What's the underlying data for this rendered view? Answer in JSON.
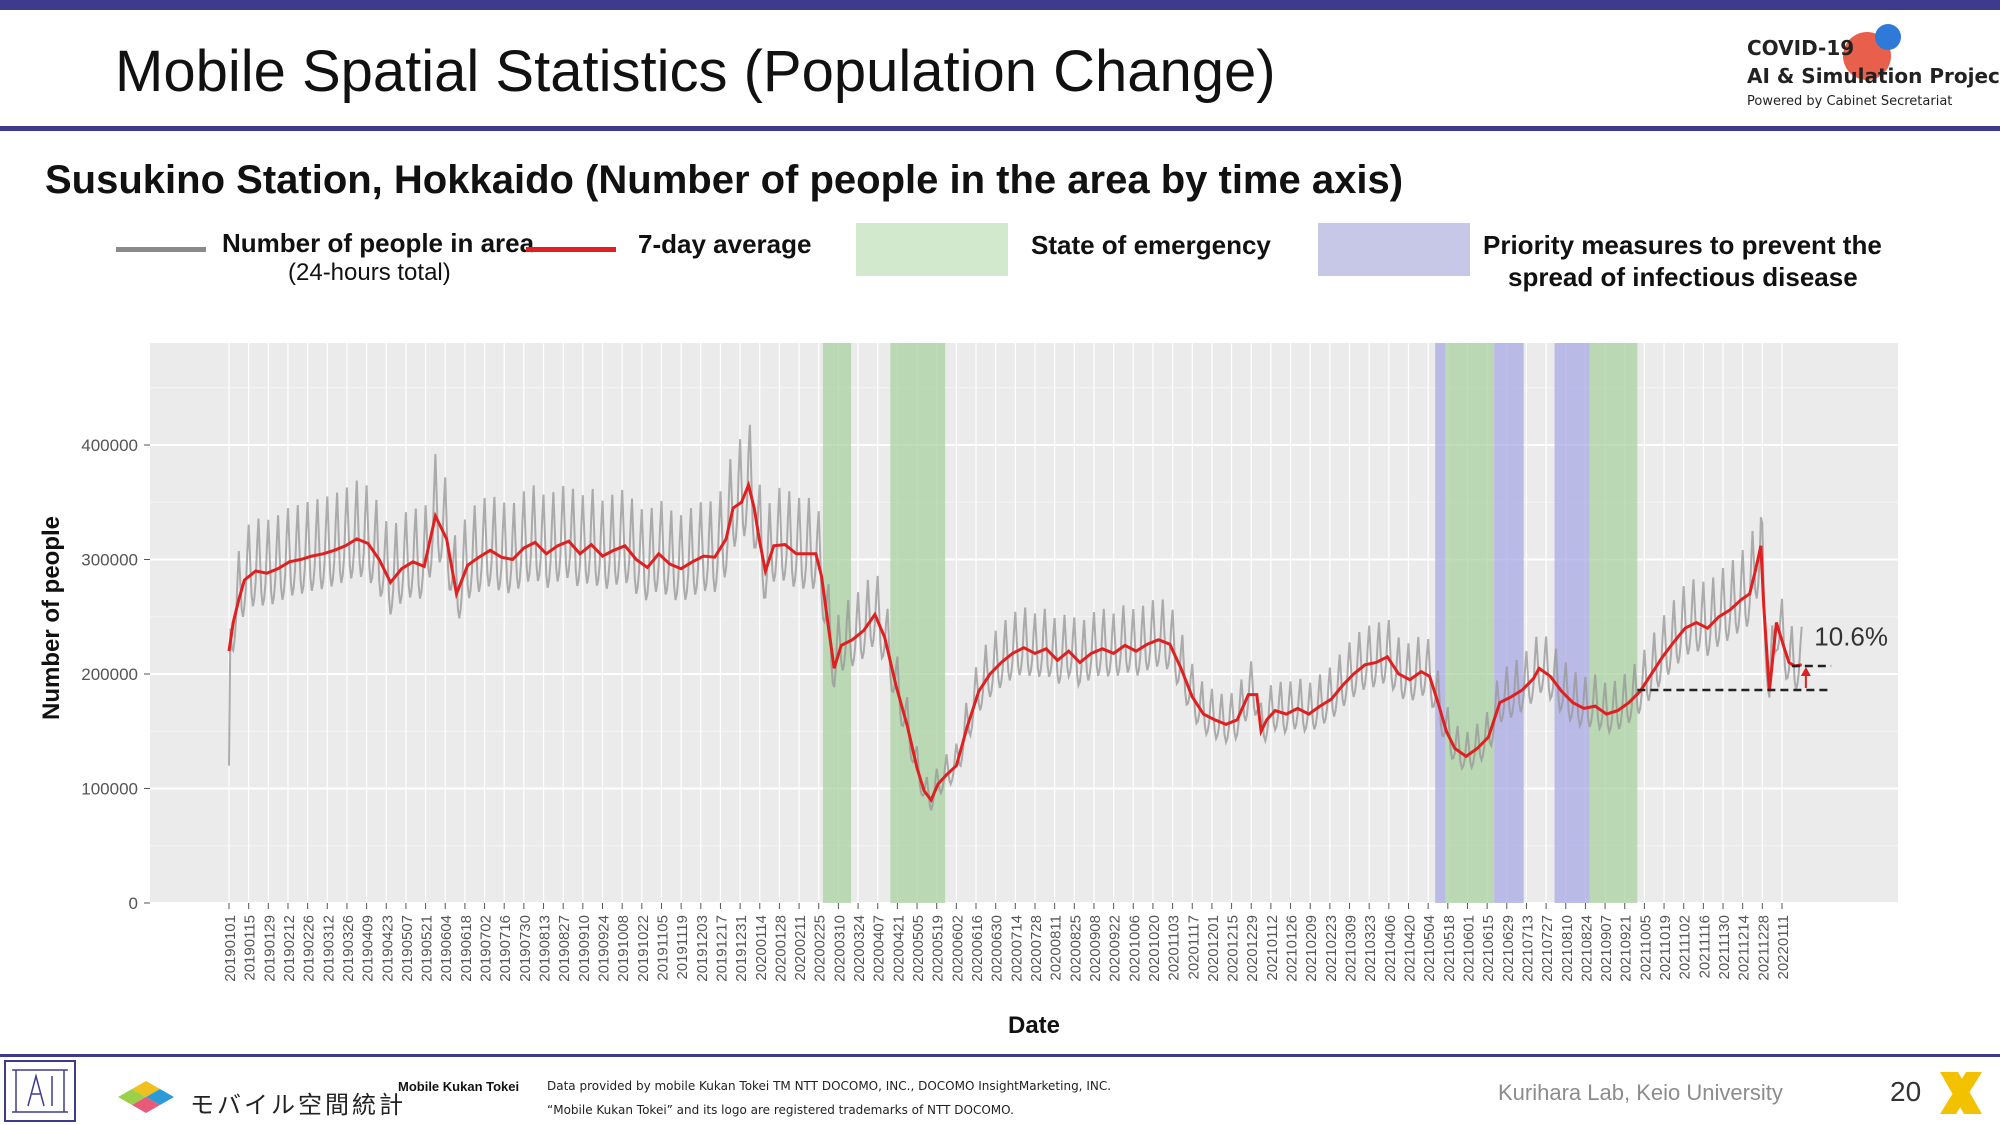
{
  "slide": {
    "title": "Mobile Spatial Statistics (Population Change)",
    "subtitle": "Susukino Station, Hokkaido (Number of people in the area by time axis)",
    "logo": {
      "line1": "COVID-19",
      "line2": "AI & Simulation Project",
      "line3": "Powered by Cabinet Secretariat"
    },
    "page_number": "20",
    "footer": {
      "mk_logo_text": "モバイル空間統計",
      "name": "Mobile Kukan Tokei",
      "credit_line1": "Data provided by mobile Kukan Tokei TM NTT DOCOMO, INC., DOCOMO InsightMarketing, INC.",
      "credit_line2": "“Mobile Kukan Tokei” and its logo are registered trademarks of NTT DOCOMO.",
      "lab": "Kurihara Lab, Keio University"
    }
  },
  "legend": {
    "daily_label": "Number of people in area",
    "daily_sublabel": "(24-hours total)",
    "avg_label": "7-day average",
    "emergency_label": "State of emergency",
    "priority_label_1": "Priority measures to prevent the",
    "priority_label_2": "spread of infectious disease"
  },
  "colors": {
    "accent_bar": "#3e3b8f",
    "daily_line": "#9a9a9a",
    "avg_line": "#e02020",
    "emergency": "#a9d2a0",
    "priority": "#a9a9e6",
    "panel_bg": "#ebebeb"
  },
  "chart_data": {
    "type": "line",
    "xlabel": "Date",
    "ylabel": "Number of people",
    "ylim": [
      0,
      470000
    ],
    "yticks": [
      0,
      100000,
      200000,
      300000,
      400000
    ],
    "ytick_labels": [
      "0",
      "100000",
      "200000",
      "300000",
      "400000"
    ],
    "xlim": [
      "2019-01-01",
      "2022-02-15"
    ],
    "x_tick_labels": [
      "20190101",
      "20190115",
      "20190129",
      "20190212",
      "20190226",
      "20190312",
      "20190326",
      "20190409",
      "20190423",
      "20190507",
      "20190521",
      "20190604",
      "20190618",
      "20190702",
      "20190716",
      "20190730",
      "20190813",
      "20190827",
      "20190910",
      "20190924",
      "20191008",
      "20191022",
      "20191105",
      "20191119",
      "20191203",
      "20191217",
      "20191231",
      "20200114",
      "20200128",
      "20200211",
      "20200225",
      "20200310",
      "20200324",
      "20200407",
      "20200421",
      "20200505",
      "20200519",
      "20200602",
      "20200616",
      "20200630",
      "20200714",
      "20200728",
      "20200811",
      "20200825",
      "20200908",
      "20200922",
      "20201006",
      "20201020",
      "20201103",
      "20201117",
      "20201201",
      "20201215",
      "20201229",
      "20210112",
      "20210126",
      "20210209",
      "20210223",
      "20210309",
      "20210323",
      "20210406",
      "20210420",
      "20210504",
      "20210518",
      "20210601",
      "20210615",
      "20210629",
      "20210713",
      "20210727",
      "20210810",
      "20210824",
      "20210907",
      "20210921",
      "20211005",
      "20211019",
      "20211102",
      "20211116",
      "20211130",
      "20211214",
      "20211228",
      "20220111"
    ],
    "grid": true,
    "shaded_periods": [
      {
        "kind": "emergency",
        "start": "2020-02-28",
        "end": "2020-03-19"
      },
      {
        "kind": "emergency",
        "start": "2020-04-16",
        "end": "2020-05-25"
      },
      {
        "kind": "priority",
        "start": "2021-05-09",
        "end": "2021-05-16"
      },
      {
        "kind": "emergency",
        "start": "2021-05-16",
        "end": "2021-06-20"
      },
      {
        "kind": "priority",
        "start": "2021-06-20",
        "end": "2021-07-11"
      },
      {
        "kind": "priority",
        "start": "2021-08-02",
        "end": "2021-08-27"
      },
      {
        "kind": "emergency",
        "start": "2021-08-27",
        "end": "2021-09-30"
      }
    ],
    "series": [
      {
        "name": "7-day average",
        "points": [
          [
            "2019-01-01",
            220000
          ],
          [
            "2019-01-04",
            245000
          ],
          [
            "2019-01-08",
            265000
          ],
          [
            "2019-01-12",
            282000
          ],
          [
            "2019-01-20",
            290000
          ],
          [
            "2019-01-28",
            288000
          ],
          [
            "2019-02-05",
            292000
          ],
          [
            "2019-02-13",
            298000
          ],
          [
            "2019-02-21",
            300000
          ],
          [
            "2019-03-01",
            303000
          ],
          [
            "2019-03-09",
            305000
          ],
          [
            "2019-03-17",
            308000
          ],
          [
            "2019-03-25",
            312000
          ],
          [
            "2019-04-02",
            318000
          ],
          [
            "2019-04-10",
            314000
          ],
          [
            "2019-04-18",
            300000
          ],
          [
            "2019-04-26",
            280000
          ],
          [
            "2019-05-04",
            292000
          ],
          [
            "2019-05-12",
            298000
          ],
          [
            "2019-05-20",
            294000
          ],
          [
            "2019-05-28",
            338000
          ],
          [
            "2019-06-05",
            318000
          ],
          [
            "2019-06-12",
            270000
          ],
          [
            "2019-06-20",
            295000
          ],
          [
            "2019-06-28",
            302000
          ],
          [
            "2019-07-06",
            308000
          ],
          [
            "2019-07-14",
            302000
          ],
          [
            "2019-07-22",
            300000
          ],
          [
            "2019-07-30",
            310000
          ],
          [
            "2019-08-07",
            315000
          ],
          [
            "2019-08-15",
            305000
          ],
          [
            "2019-08-23",
            312000
          ],
          [
            "2019-08-31",
            316000
          ],
          [
            "2019-09-08",
            305000
          ],
          [
            "2019-09-16",
            313000
          ],
          [
            "2019-09-24",
            303000
          ],
          [
            "2019-10-02",
            308000
          ],
          [
            "2019-10-10",
            312000
          ],
          [
            "2019-10-18",
            300000
          ],
          [
            "2019-10-26",
            293000
          ],
          [
            "2019-11-03",
            305000
          ],
          [
            "2019-11-11",
            296000
          ],
          [
            "2019-11-19",
            292000
          ],
          [
            "2019-11-27",
            298000
          ],
          [
            "2019-12-05",
            303000
          ],
          [
            "2019-12-13",
            302000
          ],
          [
            "2019-12-21",
            318000
          ],
          [
            "2019-12-26",
            345000
          ],
          [
            "2020-01-01",
            350000
          ],
          [
            "2020-01-06",
            365000
          ],
          [
            "2020-01-10",
            345000
          ],
          [
            "2020-01-14",
            315000
          ],
          [
            "2020-01-18",
            290000
          ],
          [
            "2020-01-24",
            312000
          ],
          [
            "2020-02-01",
            313000
          ],
          [
            "2020-02-09",
            305000
          ],
          [
            "2020-02-17",
            305000
          ],
          [
            "2020-02-23",
            305000
          ],
          [
            "2020-02-27",
            285000
          ],
          [
            "2020-03-03",
            240000
          ],
          [
            "2020-03-07",
            205000
          ],
          [
            "2020-03-12",
            225000
          ],
          [
            "2020-03-20",
            230000
          ],
          [
            "2020-03-28",
            238000
          ],
          [
            "2020-04-05",
            252000
          ],
          [
            "2020-04-12",
            232000
          ],
          [
            "2020-04-20",
            190000
          ],
          [
            "2020-04-28",
            155000
          ],
          [
            "2020-05-05",
            118000
          ],
          [
            "2020-05-10",
            98000
          ],
          [
            "2020-05-15",
            90000
          ],
          [
            "2020-05-20",
            104000
          ],
          [
            "2020-05-26",
            112000
          ],
          [
            "2020-06-02",
            120000
          ],
          [
            "2020-06-10",
            155000
          ],
          [
            "2020-06-18",
            185000
          ],
          [
            "2020-06-26",
            200000
          ],
          [
            "2020-07-04",
            210000
          ],
          [
            "2020-07-12",
            218000
          ],
          [
            "2020-07-20",
            223000
          ],
          [
            "2020-07-28",
            218000
          ],
          [
            "2020-08-05",
            222000
          ],
          [
            "2020-08-13",
            212000
          ],
          [
            "2020-08-21",
            220000
          ],
          [
            "2020-08-29",
            210000
          ],
          [
            "2020-09-06",
            218000
          ],
          [
            "2020-09-14",
            222000
          ],
          [
            "2020-09-22",
            218000
          ],
          [
            "2020-09-30",
            225000
          ],
          [
            "2020-10-08",
            220000
          ],
          [
            "2020-10-16",
            226000
          ],
          [
            "2020-10-24",
            230000
          ],
          [
            "2020-11-01",
            226000
          ],
          [
            "2020-11-09",
            205000
          ],
          [
            "2020-11-17",
            180000
          ],
          [
            "2020-11-25",
            165000
          ],
          [
            "2020-12-03",
            160000
          ],
          [
            "2020-12-11",
            156000
          ],
          [
            "2020-12-19",
            160000
          ],
          [
            "2020-12-27",
            182000
          ],
          [
            "2021-01-02",
            182000
          ],
          [
            "2021-01-05",
            150000
          ],
          [
            "2021-01-09",
            160000
          ],
          [
            "2021-01-15",
            168000
          ],
          [
            "2021-01-23",
            165000
          ],
          [
            "2021-01-31",
            170000
          ],
          [
            "2021-02-08",
            165000
          ],
          [
            "2021-02-16",
            172000
          ],
          [
            "2021-02-24",
            178000
          ],
          [
            "2021-03-04",
            190000
          ],
          [
            "2021-03-12",
            200000
          ],
          [
            "2021-03-20",
            208000
          ],
          [
            "2021-03-28",
            210000
          ],
          [
            "2021-04-05",
            215000
          ],
          [
            "2021-04-13",
            200000
          ],
          [
            "2021-04-21",
            195000
          ],
          [
            "2021-04-29",
            202000
          ],
          [
            "2021-05-05",
            198000
          ],
          [
            "2021-05-11",
            175000
          ],
          [
            "2021-05-17",
            150000
          ],
          [
            "2021-05-23",
            135000
          ],
          [
            "2021-05-31",
            128000
          ],
          [
            "2021-06-08",
            135000
          ],
          [
            "2021-06-16",
            145000
          ],
          [
            "2021-06-24",
            175000
          ],
          [
            "2021-07-02",
            180000
          ],
          [
            "2021-07-10",
            186000
          ],
          [
            "2021-07-18",
            196000
          ],
          [
            "2021-07-22",
            205000
          ],
          [
            "2021-07-30",
            198000
          ],
          [
            "2021-08-07",
            185000
          ],
          [
            "2021-08-15",
            175000
          ],
          [
            "2021-08-23",
            170000
          ],
          [
            "2021-08-31",
            172000
          ],
          [
            "2021-09-08",
            165000
          ],
          [
            "2021-09-16",
            168000
          ],
          [
            "2021-09-24",
            175000
          ],
          [
            "2021-10-02",
            185000
          ],
          [
            "2021-10-10",
            200000
          ],
          [
            "2021-10-18",
            215000
          ],
          [
            "2021-10-26",
            228000
          ],
          [
            "2021-11-03",
            240000
          ],
          [
            "2021-11-11",
            245000
          ],
          [
            "2021-11-19",
            240000
          ],
          [
            "2021-11-27",
            250000
          ],
          [
            "2021-12-05",
            256000
          ],
          [
            "2021-12-13",
            265000
          ],
          [
            "2021-12-19",
            270000
          ],
          [
            "2021-12-23",
            290000
          ],
          [
            "2021-12-27",
            312000
          ],
          [
            "2021-12-29",
            260000
          ],
          [
            "2022-01-02",
            185000
          ],
          [
            "2022-01-07",
            245000
          ],
          [
            "2022-01-12",
            225000
          ],
          [
            "2022-01-16",
            210000
          ],
          [
            "2022-01-20",
            207000
          ],
          [
            "2022-01-25",
            208000
          ]
        ]
      }
    ],
    "reference_lines": [
      {
        "y": 186000,
        "x_start": "2021-09-30",
        "x_end": "2022-02-15"
      },
      {
        "y": 207000,
        "x_start": "2022-01-18",
        "x_end": "2022-02-15"
      }
    ],
    "annotation": {
      "text": "10.6%",
      "x": "2022-02-03",
      "y": 230000
    }
  }
}
